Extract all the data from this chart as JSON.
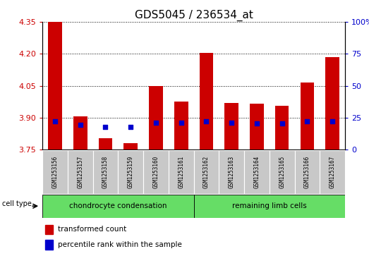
{
  "title": "GDS5045 / 236534_at",
  "samples": [
    "GSM1253156",
    "GSM1253157",
    "GSM1253158",
    "GSM1253159",
    "GSM1253160",
    "GSM1253161",
    "GSM1253162",
    "GSM1253163",
    "GSM1253164",
    "GSM1253165",
    "GSM1253166",
    "GSM1253167"
  ],
  "transformed_count": [
    4.35,
    3.905,
    3.805,
    3.78,
    4.05,
    3.975,
    4.205,
    3.97,
    3.965,
    3.955,
    4.065,
    4.185
  ],
  "percentile_pos": [
    3.882,
    3.866,
    3.858,
    3.858,
    3.878,
    3.876,
    3.883,
    3.876,
    3.875,
    3.875,
    3.882,
    3.882
  ],
  "ymin": 3.75,
  "ymax": 4.35,
  "yticks": [
    3.75,
    3.9,
    4.05,
    4.2,
    4.35
  ],
  "y2min": 0,
  "y2max": 100,
  "y2ticks": [
    0,
    25,
    50,
    75,
    100
  ],
  "y2ticklabels": [
    "0",
    "25",
    "50",
    "75",
    "100%"
  ],
  "bar_color": "#cc0000",
  "dot_color": "#0000cc",
  "bar_bottom": 3.75,
  "group1_label": "chondrocyte condensation",
  "group2_label": "remaining limb cells",
  "group1_indices": [
    0,
    1,
    2,
    3,
    4,
    5
  ],
  "group2_indices": [
    6,
    7,
    8,
    9,
    10,
    11
  ],
  "cell_type_label": "cell type",
  "legend1": "transformed count",
  "legend2": "percentile rank within the sample",
  "title_fontsize": 11,
  "tick_fontsize": 8,
  "bar_color_left": "#cc0000",
  "bar_color_right": "#0000cc",
  "bg_color": "#ffffff",
  "plot_bg": "#ffffff",
  "tick_label_bg": "#c8c8c8",
  "group_bg": "#66dd66",
  "bar_width": 0.55
}
